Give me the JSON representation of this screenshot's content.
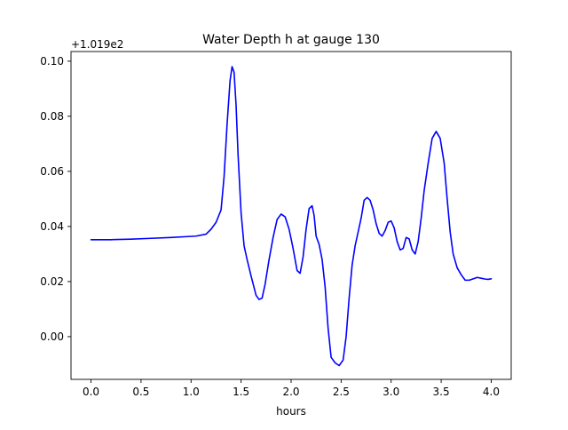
{
  "chart_data": {
    "type": "line",
    "title": "Water Depth h at gauge 130",
    "xlabel": "hours",
    "ylabel": "",
    "y_offset_label": "+1.019e2",
    "xlim": [
      -0.2,
      4.2
    ],
    "ylim": [
      -0.0155,
      0.1035
    ],
    "grid": false,
    "x_ticks": [
      0.0,
      0.5,
      1.0,
      1.5,
      2.0,
      2.5,
      3.0,
      3.5,
      4.0
    ],
    "x_tick_labels": [
      "0.0",
      "0.5",
      "1.0",
      "1.5",
      "2.0",
      "2.5",
      "3.0",
      "3.5",
      "4.0"
    ],
    "y_ticks": [
      0.0,
      0.02,
      0.04,
      0.06,
      0.08,
      0.1
    ],
    "y_tick_labels": [
      "0.00",
      "0.02",
      "0.04",
      "0.06",
      "0.08",
      "0.10"
    ],
    "series": [
      {
        "color": "#0000ff",
        "x": [
          0.0,
          0.2,
          0.4,
          0.6,
          0.8,
          0.95,
          1.05,
          1.15,
          1.2,
          1.25,
          1.3,
          1.33,
          1.36,
          1.39,
          1.41,
          1.43,
          1.45,
          1.47,
          1.5,
          1.53,
          1.56,
          1.6,
          1.65,
          1.68,
          1.71,
          1.74,
          1.78,
          1.82,
          1.86,
          1.9,
          1.94,
          1.98,
          2.02,
          2.06,
          2.09,
          2.12,
          2.15,
          2.18,
          2.21,
          2.23,
          2.25,
          2.28,
          2.31,
          2.34,
          2.37,
          2.4,
          2.44,
          2.48,
          2.52,
          2.55,
          2.58,
          2.61,
          2.64,
          2.67,
          2.7,
          2.73,
          2.76,
          2.79,
          2.82,
          2.85,
          2.88,
          2.91,
          2.94,
          2.97,
          3.0,
          3.03,
          3.06,
          3.09,
          3.12,
          3.15,
          3.18,
          3.21,
          3.24,
          3.27,
          3.3,
          3.33,
          3.37,
          3.41,
          3.45,
          3.49,
          3.53,
          3.56,
          3.59,
          3.62,
          3.66,
          3.7,
          3.74,
          3.78,
          3.82,
          3.86,
          3.9,
          3.94,
          3.97,
          4.0
        ],
        "y": [
          0.0352,
          0.0352,
          0.0354,
          0.0357,
          0.036,
          0.0363,
          0.0365,
          0.0372,
          0.039,
          0.0415,
          0.046,
          0.058,
          0.077,
          0.093,
          0.098,
          0.096,
          0.084,
          0.066,
          0.045,
          0.033,
          0.028,
          0.022,
          0.015,
          0.0135,
          0.014,
          0.019,
          0.028,
          0.036,
          0.0425,
          0.0445,
          0.0435,
          0.039,
          0.032,
          0.024,
          0.023,
          0.029,
          0.039,
          0.0465,
          0.0475,
          0.044,
          0.0365,
          0.0335,
          0.028,
          0.018,
          0.003,
          -0.0075,
          -0.0095,
          -0.0105,
          -0.0085,
          0.0,
          0.014,
          0.026,
          0.033,
          0.038,
          0.043,
          0.0495,
          0.0505,
          0.0495,
          0.046,
          0.041,
          0.0375,
          0.0365,
          0.0385,
          0.0415,
          0.042,
          0.0395,
          0.0345,
          0.0315,
          0.032,
          0.036,
          0.0355,
          0.0315,
          0.03,
          0.0345,
          0.043,
          0.053,
          0.063,
          0.072,
          0.0745,
          0.072,
          0.063,
          0.05,
          0.038,
          0.03,
          0.025,
          0.0225,
          0.0205,
          0.0205,
          0.021,
          0.0215,
          0.0212,
          0.0209,
          0.0208,
          0.021
        ]
      }
    ]
  }
}
